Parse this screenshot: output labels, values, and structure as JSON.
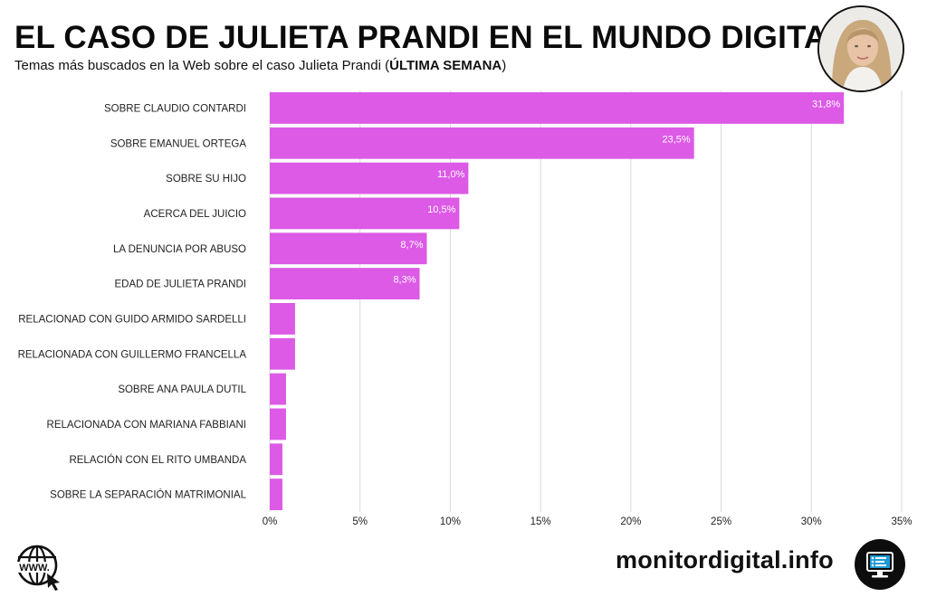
{
  "header": {
    "title": "EL CASO DE JULIETA PRANDI EN EL MUNDO DIGITAL",
    "subtitle_prefix": "Temas más buscados en la Web sobre el caso Julieta Prandi (",
    "subtitle_bold": "ÚLTIMA SEMANA",
    "subtitle_suffix": ")"
  },
  "footer": {
    "brand": "monitordigital.info",
    "www_label": "WWW."
  },
  "colors": {
    "bar": "#dc5ae6",
    "grid": "#d9d9d9"
  },
  "chart_data": {
    "type": "bar",
    "orientation": "horizontal",
    "title": "EL CASO DE JULIETA PRANDI EN EL MUNDO DIGITAL",
    "subtitle": "Temas más buscados en la Web sobre el caso Julieta Prandi (ÚLTIMA SEMANA)",
    "categories": [
      "SOBRE CLAUDIO CONTARDI",
      "SOBRE EMANUEL ORTEGA",
      "SOBRE SU HIJO",
      "ACERCA DEL JUICIO",
      "LA DENUNCIA POR ABUSO",
      "EDAD DE JULIETA PRANDI",
      "RELACIONAD CON GUIDO ARMIDO SARDELLI",
      "RELACIONADA CON GUILLERMO FRANCELLA",
      "SOBRE ANA PAULA DUTIL",
      "RELACIONADA CON MARIANA FABBIANI",
      "RELACIÓN CON EL RITO UMBANDA",
      "SOBRE LA SEPARACIÓN MATRIMONIAL"
    ],
    "values": [
      31.8,
      23.5,
      11.0,
      10.5,
      8.7,
      8.3,
      1.4,
      1.4,
      0.9,
      0.9,
      0.7,
      0.7
    ],
    "value_labels": [
      "31,8%",
      "23,5%",
      "11,0%",
      "10,5%",
      "8,7%",
      "8,3%",
      "",
      "",
      "",
      "",
      "",
      ""
    ],
    "xlim": [
      0,
      35
    ],
    "xticks": [
      0,
      5,
      10,
      15,
      20,
      25,
      30,
      35
    ],
    "xtick_labels": [
      "0%",
      "5%",
      "10%",
      "15%",
      "20%",
      "25%",
      "30%",
      "35%"
    ],
    "xlabel": "",
    "ylabel": "",
    "grid": true
  }
}
